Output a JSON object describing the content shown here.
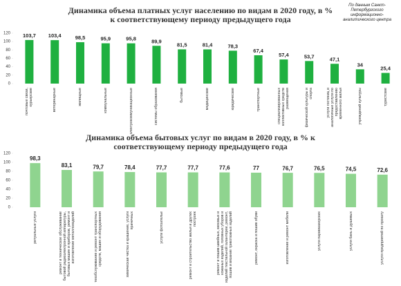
{
  "note": "По данным Санкт-Петербургского информационно-аналитического центра",
  "chart_data": [
    {
      "type": "bar",
      "title": "Динамика объема платных услуг населению по видам в 2020 году, в % к соответствующему периоду предыдущего года",
      "categories": [
        "почтовые связи, курьерские",
        "ветеринарные",
        "жилищные",
        "коммунальные",
        "электрокоммуникационные",
        "системы образования",
        "бытовые",
        "медицинские",
        "юридические",
        "транспортные",
        "специализированных коллективных средств размещения",
        "физической культуры и спорта",
        "услуги гостиниц и аналогичные услуги по предоставлению временного жилья",
        "учреждений культуры",
        "туристские"
      ],
      "values": [
        103.7,
        103.4,
        98.5,
        95.9,
        95.8,
        89.9,
        81.5,
        81.4,
        78.3,
        67.4,
        57.4,
        53.7,
        47.1,
        34,
        25.4
      ],
      "value_labels": [
        "103,7",
        "103,4",
        "98,5",
        "95,9",
        "95,8",
        "89,9",
        "81,5",
        "81,4",
        "78,3",
        "67,4",
        "57,4",
        "53,7",
        "47,1",
        "34",
        "25,4"
      ],
      "color": "#1fb040",
      "ylim": [
        0,
        120
      ],
      "yticks": [
        0,
        20,
        40,
        60,
        80,
        100,
        120
      ]
    },
    {
      "type": "bar",
      "title": "Динамика объема бытовых услуг по видам в 2020 году, в % к соответствующему периоду предыдущего года",
      "categories": [
        "ритуальные услуги",
        "ремонт и техническое обслуживание бытовой радиоэлектронной аппаратуры, бытовых машин и приборов, ремонт и изготовление металлоизделий",
        "техобслуживание и ремонт транспортных средств, машин и оборудования",
        "химическая чистка и крашение, услуги прачечных",
        "услуги фотоателье",
        "ремонт и строительство жилья и других построек",
        "ремонт и пошив швейных, меховых и кожаных изделий, головных уборов и изделий текстильной галантереи, ремонт, пошив и вязание трикотажных изделий",
        "ремонт, окраска и пошив обуви",
        "изготовление и ремонт мебели",
        "услуги парикмахерских",
        "услуги бань и душевых",
        "услуги предприятий по прокату"
      ],
      "values": [
        98.3,
        83.1,
        79.7,
        78.4,
        77.7,
        77.7,
        77.6,
        77,
        76.7,
        76.5,
        74.5,
        72.6
      ],
      "value_labels": [
        "98,3",
        "83,1",
        "79,7",
        "78,4",
        "77,7",
        "77,7",
        "77,6",
        "77",
        "76,7",
        "76,5",
        "74,5",
        "72,6"
      ],
      "color": "#8fd48f",
      "ylim": [
        0,
        120
      ],
      "yticks": [
        0,
        20,
        40,
        60,
        80,
        100,
        120
      ]
    }
  ]
}
